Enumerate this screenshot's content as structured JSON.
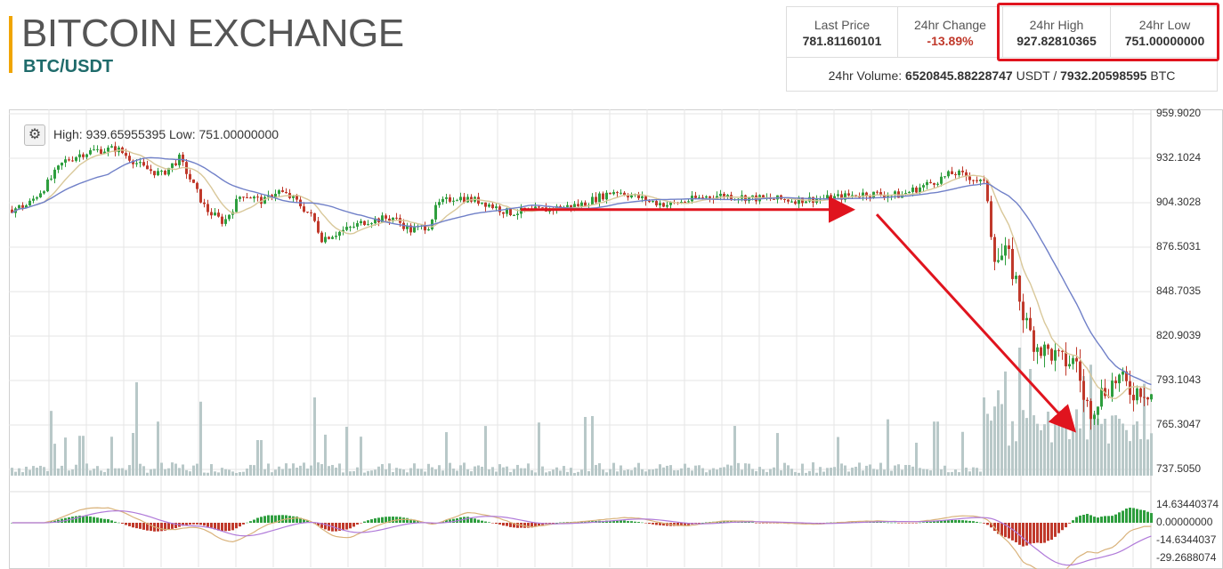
{
  "header": {
    "title": "BITCOIN EXCHANGE",
    "pair": "BTC/USDT"
  },
  "stats": {
    "last_price_label": "Last Price",
    "last_price": "781.81160101",
    "change_label": "24hr Change",
    "change": "-13.89%",
    "high_label": "24hr High",
    "high": "927.82810365",
    "low_label": "24hr Low",
    "low": "751.00000000",
    "volume_prefix": "24hr Volume:",
    "volume_usdt": "6520845.88228747",
    "volume_usdt_unit": "USDT",
    "volume_sep": "/",
    "volume_btc": "7932.20598595",
    "volume_btc_unit": "BTC"
  },
  "chart": {
    "settings_icon": "gear-icon",
    "info_high_label": "High:",
    "info_high": "939.65955395",
    "info_low_label": "Low:",
    "info_low": "751.00000000",
    "price_ticks": [
      "959.9020",
      "932.1024",
      "904.3028",
      "876.5031",
      "848.7035",
      "820.9039",
      "793.1043",
      "765.3047",
      "737.5050"
    ],
    "macd_ticks": [
      "14.63440374",
      "0.00000000",
      "-14.6344037",
      "-29.2688074"
    ],
    "colors": {
      "up": "#2e9e3e",
      "down": "#c0392b",
      "volume": "#b8c8c8",
      "ma_short": "#d9c89a",
      "ma_long": "#7080c8",
      "annotation": "#e0141e",
      "grid": "#e6e6e6"
    }
  },
  "chart_data": {
    "type": "candlestick",
    "price_range": [
      737.505,
      959.902
    ],
    "macd_range": [
      -29.2688074,
      14.63440374
    ],
    "grid": true,
    "series": [
      {
        "name": "price",
        "close_anchors": [
          [
            0,
            900
          ],
          [
            20,
            903
          ],
          [
            40,
            915
          ],
          [
            60,
            930
          ],
          [
            80,
            935
          ],
          [
            95,
            937
          ],
          [
            120,
            938
          ],
          [
            150,
            926
          ],
          [
            170,
            922
          ],
          [
            190,
            932
          ],
          [
            220,
            900
          ],
          [
            240,
            892
          ],
          [
            260,
            910
          ],
          [
            285,
            905
          ],
          [
            300,
            912
          ],
          [
            320,
            906
          ],
          [
            340,
            895
          ],
          [
            350,
            882
          ],
          [
            380,
            888
          ],
          [
            400,
            893
          ],
          [
            430,
            895
          ],
          [
            450,
            887
          ],
          [
            470,
            890
          ],
          [
            480,
            903
          ],
          [
            500,
            908
          ],
          [
            530,
            905
          ],
          [
            560,
            898
          ],
          [
            600,
            900
          ],
          [
            640,
            903
          ],
          [
            680,
            912
          ],
          [
            720,
            905
          ],
          [
            740,
            903
          ],
          [
            780,
            908
          ],
          [
            800,
            909
          ],
          [
            840,
            907
          ],
          [
            880,
            906
          ],
          [
            920,
            907
          ],
          [
            960,
            910
          ],
          [
            1000,
            909
          ],
          [
            1040,
            918
          ],
          [
            1060,
            923
          ],
          [
            1080,
            920
          ],
          [
            1095,
            916
          ],
          [
            1100,
            900
          ],
          [
            1104,
            875
          ],
          [
            1110,
            870
          ],
          [
            1120,
            872
          ],
          [
            1130,
            855
          ],
          [
            1140,
            830
          ],
          [
            1150,
            818
          ],
          [
            1160,
            812
          ],
          [
            1170,
            810
          ],
          [
            1180,
            805
          ],
          [
            1200,
            805
          ],
          [
            1205,
            780
          ],
          [
            1215,
            775
          ],
          [
            1225,
            785
          ],
          [
            1235,
            790
          ],
          [
            1245,
            795
          ],
          [
            1260,
            786
          ],
          [
            1270,
            788
          ],
          [
            1283,
            785
          ]
        ]
      },
      {
        "name": "volume_spikes",
        "points": [
          [
            45,
            30
          ],
          [
            80,
            28
          ],
          [
            140,
            30
          ],
          [
            165,
            38
          ],
          [
            213,
            52
          ],
          [
            280,
            25
          ],
          [
            342,
            55
          ],
          [
            1040,
            38
          ],
          [
            1095,
            55
          ],
          [
            1110,
            60
          ],
          [
            1135,
            90
          ],
          [
            1145,
            75
          ],
          [
            1165,
            45
          ],
          [
            1205,
            70
          ],
          [
            1215,
            78
          ],
          [
            1245,
            40
          ]
        ]
      }
    ],
    "annotations": [
      {
        "type": "arrow",
        "from": [
          575,
          900
        ],
        "to": [
          945,
          900
        ]
      },
      {
        "type": "arrow",
        "from": [
          975,
          897
        ],
        "to": [
          1195,
          763
        ]
      }
    ]
  }
}
